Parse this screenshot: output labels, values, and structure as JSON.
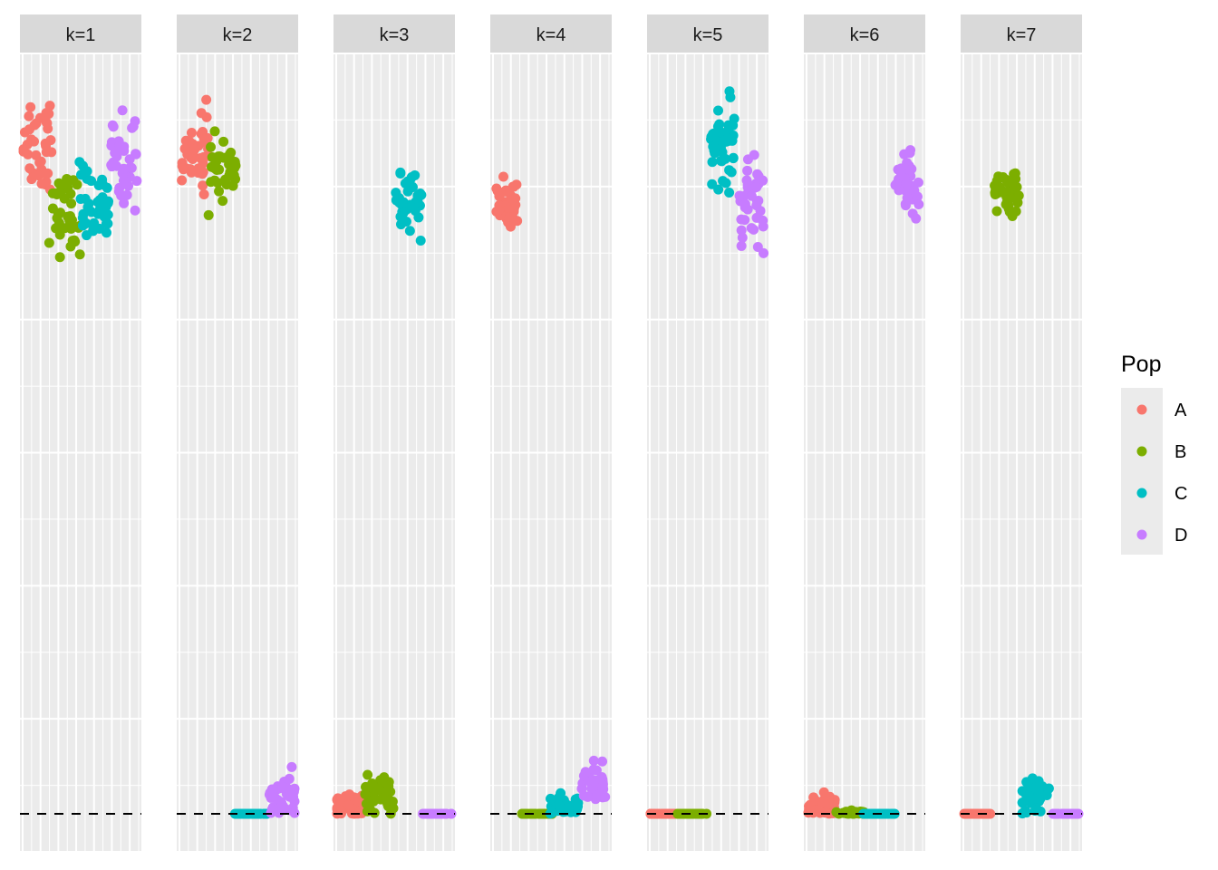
{
  "chart_data": {
    "type": "scatter",
    "facet_labels": [
      "k=1",
      "k=2",
      "k=3",
      "k=4",
      "k=5",
      "k=6",
      "k=7"
    ],
    "legend": {
      "title": "Pop",
      "placement": "right",
      "entries": [
        {
          "label": "A",
          "color": "#F8766D"
        },
        {
          "label": "B",
          "color": "#7CAE00"
        },
        {
          "label": "C",
          "color": "#00BFC4"
        },
        {
          "label": "D",
          "color": "#C77CFF"
        }
      ]
    },
    "reference_line": {
      "y": 0,
      "style": "dashed",
      "color": "#000000"
    },
    "x_range": [
      0,
      1
    ],
    "y_range": [
      -0.05,
      1
    ],
    "grid": true,
    "clusters": [
      {
        "facet": 0,
        "pop": "A",
        "x_center": 0.14,
        "y_center": 0.885,
        "x_spread": 0.12,
        "y_spread": 0.06,
        "n": 40
      },
      {
        "facet": 0,
        "pop": "B",
        "x_center": 0.37,
        "y_center": 0.79,
        "x_spread": 0.13,
        "y_spread": 0.04,
        "n": 40
      },
      {
        "facet": 0,
        "pop": "C",
        "x_center": 0.61,
        "y_center": 0.8,
        "x_spread": 0.12,
        "y_spread": 0.045,
        "n": 40
      },
      {
        "facet": 0,
        "pop": "D",
        "x_center": 0.86,
        "y_center": 0.86,
        "x_spread": 0.11,
        "y_spread": 0.05,
        "n": 40
      },
      {
        "facet": 1,
        "pop": "A",
        "x_center": 0.15,
        "y_center": 0.87,
        "x_spread": 0.11,
        "y_spread": 0.04,
        "n": 40
      },
      {
        "facet": 1,
        "pop": "B",
        "x_center": 0.38,
        "y_center": 0.85,
        "x_spread": 0.12,
        "y_spread": 0.03,
        "n": 40
      },
      {
        "facet": 1,
        "pop": "C",
        "x_center": 0.62,
        "y_center": 0.0,
        "x_spread": 0.14,
        "y_spread": 0.0,
        "n": 40
      },
      {
        "facet": 1,
        "pop": "D",
        "x_center": 0.87,
        "y_center": 0.02,
        "x_spread": 0.11,
        "y_spread": 0.025,
        "n": 40
      },
      {
        "facet": 2,
        "pop": "A",
        "x_center": 0.13,
        "y_center": 0.01,
        "x_spread": 0.12,
        "y_spread": 0.015,
        "n": 40
      },
      {
        "facet": 2,
        "pop": "B",
        "x_center": 0.38,
        "y_center": 0.025,
        "x_spread": 0.12,
        "y_spread": 0.02,
        "n": 40
      },
      {
        "facet": 2,
        "pop": "C",
        "x_center": 0.62,
        "y_center": 0.8,
        "x_spread": 0.11,
        "y_spread": 0.03,
        "n": 40
      },
      {
        "facet": 2,
        "pop": "D",
        "x_center": 0.85,
        "y_center": 0.0,
        "x_spread": 0.12,
        "y_spread": 0.0,
        "n": 40
      },
      {
        "facet": 3,
        "pop": "A",
        "x_center": 0.14,
        "y_center": 0.8,
        "x_spread": 0.09,
        "y_spread": 0.03,
        "n": 40
      },
      {
        "facet": 3,
        "pop": "B",
        "x_center": 0.38,
        "y_center": 0.0,
        "x_spread": 0.13,
        "y_spread": 0.0,
        "n": 40
      },
      {
        "facet": 3,
        "pop": "C",
        "x_center": 0.61,
        "y_center": 0.01,
        "x_spread": 0.12,
        "y_spread": 0.012,
        "n": 40
      },
      {
        "facet": 3,
        "pop": "D",
        "x_center": 0.85,
        "y_center": 0.04,
        "x_spread": 0.1,
        "y_spread": 0.02,
        "n": 40
      },
      {
        "facet": 4,
        "pop": "A",
        "x_center": 0.13,
        "y_center": 0.0,
        "x_spread": 0.13,
        "y_spread": 0.0,
        "n": 40
      },
      {
        "facet": 4,
        "pop": "B",
        "x_center": 0.37,
        "y_center": 0.0,
        "x_spread": 0.12,
        "y_spread": 0.0,
        "n": 40
      },
      {
        "facet": 4,
        "pop": "C",
        "x_center": 0.62,
        "y_center": 0.88,
        "x_spread": 0.1,
        "y_spread": 0.05,
        "n": 40
      },
      {
        "facet": 4,
        "pop": "D",
        "x_center": 0.86,
        "y_center": 0.8,
        "x_spread": 0.1,
        "y_spread": 0.05,
        "n": 40
      },
      {
        "facet": 5,
        "pop": "A",
        "x_center": 0.14,
        "y_center": 0.01,
        "x_spread": 0.12,
        "y_spread": 0.012,
        "n": 40
      },
      {
        "facet": 5,
        "pop": "B",
        "x_center": 0.38,
        "y_center": 0.0,
        "x_spread": 0.12,
        "y_spread": 0.005,
        "n": 40
      },
      {
        "facet": 5,
        "pop": "C",
        "x_center": 0.62,
        "y_center": 0.0,
        "x_spread": 0.13,
        "y_spread": 0.0,
        "n": 40
      },
      {
        "facet": 5,
        "pop": "D",
        "x_center": 0.85,
        "y_center": 0.83,
        "x_spread": 0.1,
        "y_spread": 0.03,
        "n": 40
      },
      {
        "facet": 6,
        "pop": "A",
        "x_center": 0.13,
        "y_center": 0.0,
        "x_spread": 0.12,
        "y_spread": 0.0,
        "n": 40
      },
      {
        "facet": 6,
        "pop": "B",
        "x_center": 0.38,
        "y_center": 0.81,
        "x_spread": 0.1,
        "y_spread": 0.03,
        "n": 40
      },
      {
        "facet": 6,
        "pop": "C",
        "x_center": 0.62,
        "y_center": 0.02,
        "x_spread": 0.12,
        "y_spread": 0.02,
        "n": 40
      },
      {
        "facet": 6,
        "pop": "D",
        "x_center": 0.87,
        "y_center": 0.0,
        "x_spread": 0.11,
        "y_spread": 0.0,
        "n": 40
      }
    ]
  }
}
